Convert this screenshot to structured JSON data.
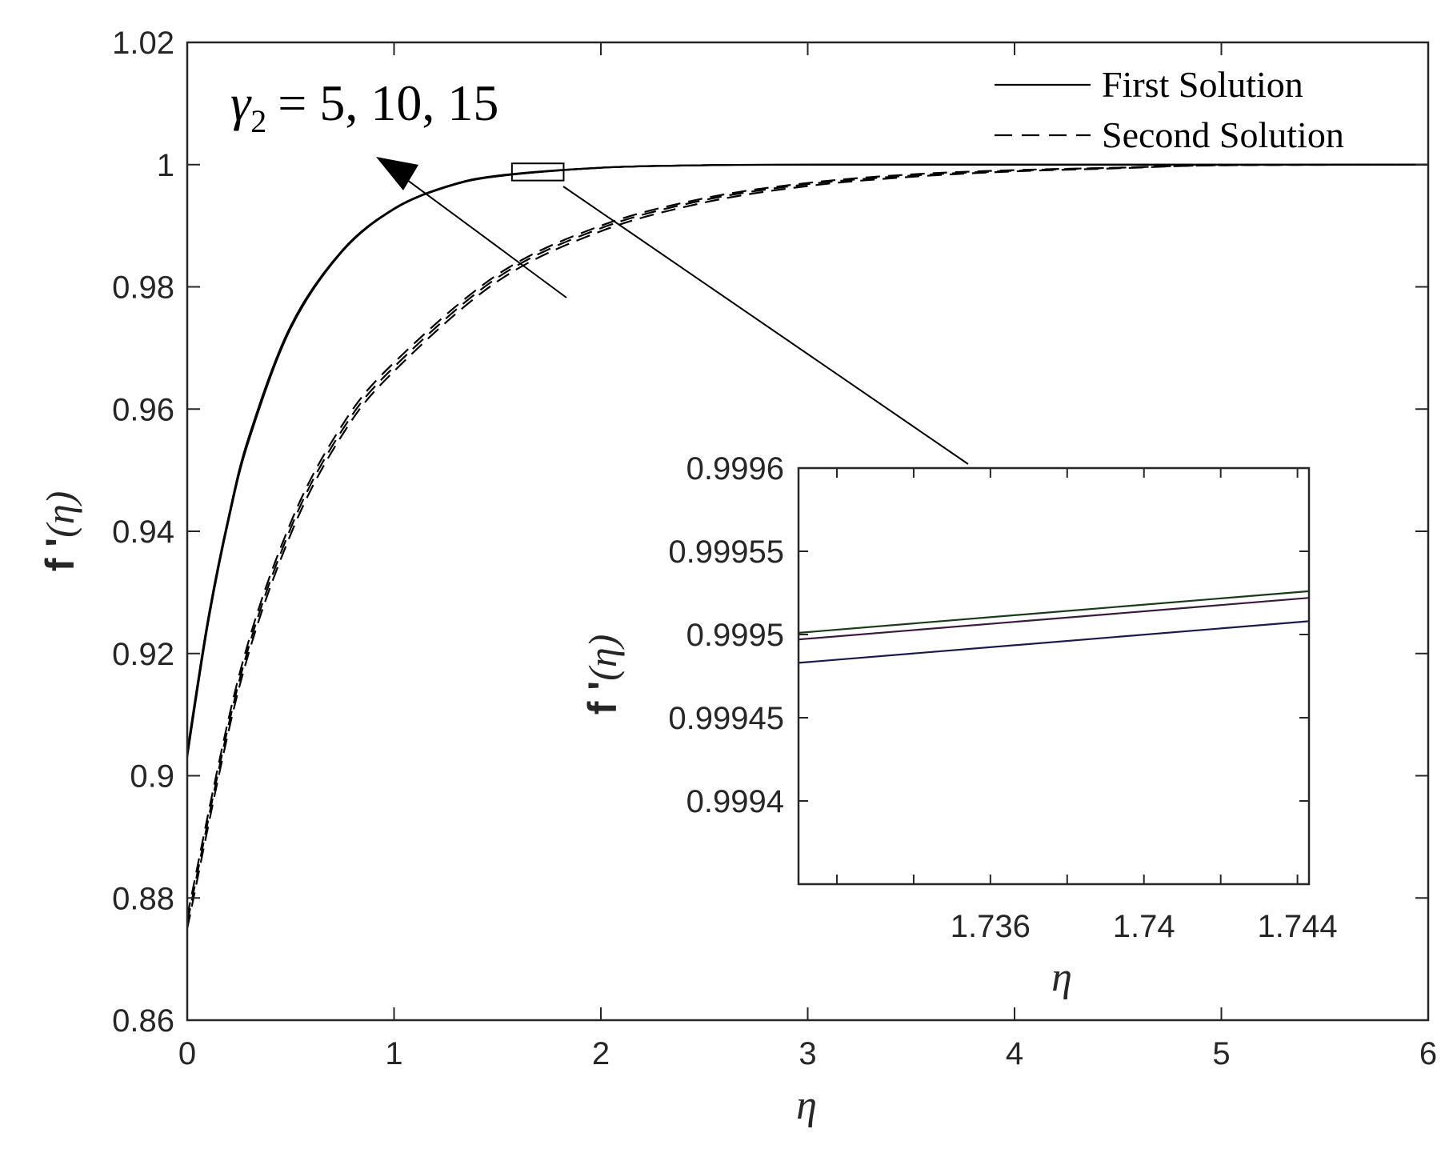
{
  "chart_data": [
    {
      "type": "line",
      "xlabel": "η",
      "ylabel": "f '(η)",
      "xlim": [
        0,
        6
      ],
      "ylim": [
        0.86,
        1.02
      ],
      "xticks": [
        "0",
        "1",
        "2",
        "3",
        "4",
        "5",
        "6"
      ],
      "yticks": [
        "0.86",
        "0.88",
        "0.9",
        "0.92",
        "0.94",
        "0.96",
        "0.98",
        "1",
        "1.02"
      ],
      "grid": false,
      "legend": {
        "placement": "top-right",
        "entries": [
          {
            "label": "First Solution",
            "style": "solid"
          },
          {
            "label": "Second Solution",
            "style": "dashed"
          }
        ]
      },
      "annotation": {
        "symbol": "γ",
        "subscript": "2",
        "text": "= 5, 10, 15"
      },
      "series": [
        {
          "style": "solid",
          "x": [
            0,
            0.1,
            0.2,
            0.3,
            0.5,
            0.75,
            1.0,
            1.25,
            1.5,
            2.0,
            2.5,
            3,
            4,
            5,
            6
          ],
          "y": [
            0.903,
            0.9248,
            0.9418,
            0.9551,
            0.9732,
            0.9858,
            0.9927,
            0.9963,
            0.9981,
            0.9995,
            0.9999,
            1.0,
            1.0,
            1.0,
            1.0
          ]
        },
        {
          "style": "solid",
          "x": [
            0,
            0.1,
            0.2,
            0.3,
            0.5,
            0.75,
            1.0,
            1.25,
            1.5,
            2.0,
            2.5,
            3,
            4,
            5,
            6
          ],
          "y": [
            0.9035,
            0.9252,
            0.9421,
            0.9554,
            0.9734,
            0.9859,
            0.9928,
            0.9963,
            0.9981,
            0.9995,
            0.9999,
            1.0,
            1.0,
            1.0,
            1.0
          ]
        },
        {
          "style": "solid",
          "x": [
            0,
            0.1,
            0.2,
            0.3,
            0.5,
            0.75,
            1.0,
            1.25,
            1.5,
            2.0,
            2.5,
            3,
            4,
            5,
            6
          ],
          "y": [
            0.904,
            0.9256,
            0.9424,
            0.9557,
            0.9736,
            0.986,
            0.9928,
            0.9964,
            0.9982,
            0.9995,
            0.9999,
            1.0,
            1.0,
            1.0,
            1.0
          ]
        },
        {
          "style": "dashed",
          "x": [
            0,
            0.25,
            0.5,
            0.75,
            1.0,
            1.5,
            2.0,
            2.5,
            3.0,
            3.5,
            4.0,
            4.5,
            5,
            6
          ],
          "y": [
            0.875,
            0.9143,
            0.9395,
            0.9558,
            0.9662,
            0.9809,
            0.9891,
            0.9938,
            0.9965,
            0.998,
            0.9989,
            0.9994,
            0.9999,
            1.0
          ]
        },
        {
          "style": "dashed",
          "x": [
            0,
            0.25,
            0.5,
            0.75,
            1.0,
            1.5,
            2.0,
            2.5,
            3.0,
            3.5,
            4.0,
            4.5,
            5,
            6
          ],
          "y": [
            0.876,
            0.9153,
            0.9405,
            0.9566,
            0.9669,
            0.9815,
            0.9896,
            0.9942,
            0.9968,
            0.9982,
            0.999,
            0.9995,
            0.9999,
            1.0
          ]
        },
        {
          "style": "dashed",
          "x": [
            0,
            0.25,
            0.5,
            0.75,
            1.0,
            1.5,
            2.0,
            2.5,
            3.0,
            3.5,
            4.0,
            4.5,
            5,
            6
          ],
          "y": [
            0.877,
            0.9163,
            0.9414,
            0.9574,
            0.9676,
            0.982,
            0.99,
            0.9945,
            0.997,
            0.9984,
            0.9991,
            0.9995,
            0.9999,
            1.0
          ]
        }
      ],
      "zoom_box": {
        "x": [
          1.57,
          1.82
        ],
        "y": [
          0.9974,
          1.0002
        ]
      }
    },
    {
      "type": "line",
      "xlabel": "η",
      "ylabel": "f '(η)",
      "xlim": [
        1.731,
        1.7443
      ],
      "ylim": [
        0.99935,
        0.9996
      ],
      "xticks": [
        "1.736",
        "1.74",
        "1.744"
      ],
      "yticks": [
        "0.9994",
        "0.99945",
        "0.9995",
        "0.99955",
        "0.9996"
      ],
      "grid": false,
      "series": [
        {
          "style": "solid",
          "color": "#1a3a1a",
          "x": [
            1.731,
            1.7443
          ],
          "y": [
            0.999501,
            0.999526
          ]
        },
        {
          "style": "solid",
          "color": "#3a1a3a",
          "x": [
            1.731,
            1.7443
          ],
          "y": [
            0.999497,
            0.999522
          ]
        },
        {
          "style": "solid",
          "color": "#1a1a4a",
          "x": [
            1.731,
            1.7443
          ],
          "y": [
            0.999483,
            0.999508
          ]
        }
      ]
    }
  ]
}
